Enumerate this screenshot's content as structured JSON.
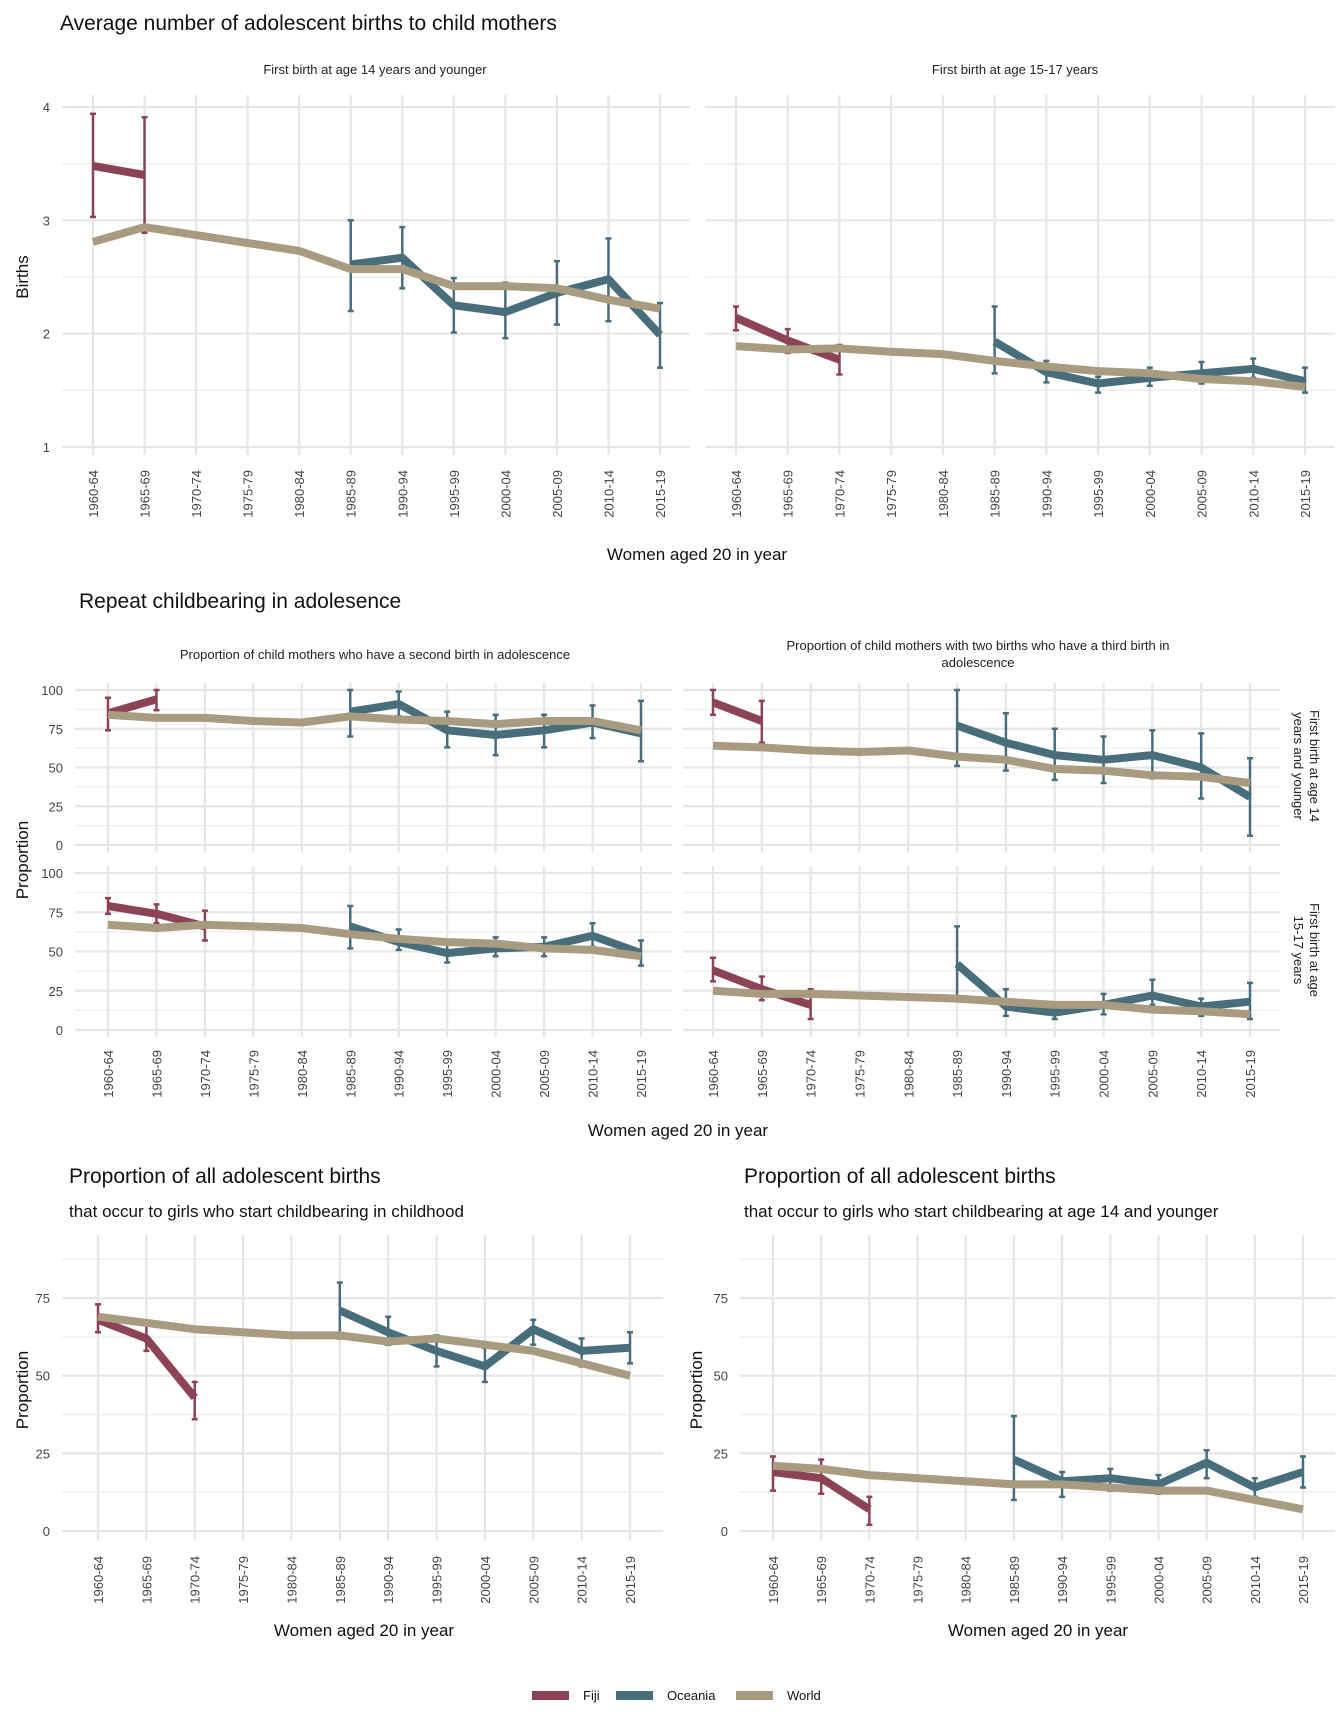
{
  "colors": {
    "Fiji": "#8b4355",
    "Oceania": "#486e7c",
    "World": "#a89b80"
  },
  "legend": [
    {
      "name": "Fiji",
      "color": "#8b4355"
    },
    {
      "name": "Oceania",
      "color": "#486e7c"
    },
    {
      "name": "World",
      "color": "#a89b80"
    }
  ],
  "categories": [
    "1960-64",
    "1965-69",
    "1970-74",
    "1975-79",
    "1980-84",
    "1985-89",
    "1990-94",
    "1995-99",
    "2000-04",
    "2005-09",
    "2010-14",
    "2015-19"
  ],
  "sections": {
    "births": {
      "title": "Average number of adolescent births to child mothers",
      "ylabel": "Births",
      "xlabel": "Women aged 20 in year"
    },
    "repeat": {
      "title": "Repeat childbearing in adolesence",
      "ylabel": "Proportion",
      "xlabel": "Women aged 20 in year",
      "col_strips": [
        "Proportion of child mothers who have a second birth in adolescence",
        "Proportion of child mothers with two births who have a third birth in",
        "adolescence"
      ],
      "row_strips": [
        "First birth at age 14",
        "years and younger",
        "First birth at age",
        "15-17 years"
      ]
    },
    "share_child": {
      "title": "Proportion of all adolescent births",
      "subtitle": "that occur to girls who start childbearing in childhood",
      "ylabel": "Proportion",
      "xlabel": "Women aged 20 in year"
    },
    "share_14": {
      "title": "Proportion of all adolescent births",
      "subtitle": "that occur to girls who start childbearing at age 14 and younger",
      "ylabel": "Proportion",
      "xlabel": "Women aged 20 in year"
    }
  },
  "chart_data": [
    {
      "id": "p1",
      "type": "line",
      "title": "First birth at age 14 years and younger",
      "xlabel": "Women aged 20 in year",
      "ylabel": "Births",
      "ylim": [
        1,
        4
      ],
      "yticks": [
        1,
        2,
        3,
        4
      ],
      "grid": true,
      "legend": "bottom",
      "series": [
        {
          "name": "Fiji",
          "values": [
            3.48,
            3.4,
            null,
            null,
            null,
            null,
            null,
            null,
            null,
            null,
            null,
            null
          ],
          "lower": [
            3.03,
            2.89,
            null,
            null,
            null,
            null,
            null,
            null,
            null,
            null,
            null,
            null
          ],
          "upper": [
            3.94,
            3.91,
            null,
            null,
            null,
            null,
            null,
            null,
            null,
            null,
            null,
            null
          ]
        },
        {
          "name": "Oceania",
          "values": [
            null,
            null,
            null,
            null,
            null,
            2.61,
            2.67,
            2.25,
            2.19,
            2.36,
            2.48,
            1.99
          ],
          "lower": [
            null,
            null,
            null,
            null,
            null,
            2.2,
            2.4,
            2.01,
            1.96,
            2.08,
            2.11,
            1.7
          ],
          "upper": [
            null,
            null,
            null,
            null,
            null,
            3.0,
            2.94,
            2.49,
            2.45,
            2.64,
            2.84,
            2.27
          ]
        },
        {
          "name": "World",
          "values": [
            2.81,
            2.94,
            2.87,
            2.8,
            2.73,
            2.57,
            2.57,
            2.42,
            2.42,
            2.4,
            2.3,
            2.22
          ]
        }
      ]
    },
    {
      "id": "p2",
      "type": "line",
      "title": "First birth at age 15-17 years",
      "xlabel": "Women aged 20 in year",
      "ylabel": "Births",
      "ylim": [
        1,
        4
      ],
      "yticks": [
        1,
        2,
        3,
        4
      ],
      "grid": true,
      "series": [
        {
          "name": "Fiji",
          "values": [
            2.14,
            1.94,
            1.77,
            null,
            null,
            null,
            null,
            null,
            null,
            null,
            null,
            null
          ],
          "lower": [
            2.03,
            1.83,
            1.64,
            null,
            null,
            null,
            null,
            null,
            null,
            null,
            null,
            null
          ],
          "upper": [
            2.24,
            2.04,
            1.9,
            null,
            null,
            null,
            null,
            null,
            null,
            null,
            null,
            null
          ]
        },
        {
          "name": "Oceania",
          "values": [
            null,
            null,
            null,
            null,
            null,
            1.93,
            1.66,
            1.56,
            1.61,
            1.65,
            1.69,
            1.58
          ],
          "lower": [
            null,
            null,
            null,
            null,
            null,
            1.65,
            1.57,
            1.48,
            1.54,
            1.56,
            1.61,
            1.48
          ],
          "upper": [
            null,
            null,
            null,
            null,
            null,
            2.24,
            1.76,
            1.62,
            1.7,
            1.75,
            1.78,
            1.7
          ]
        },
        {
          "name": "World",
          "values": [
            1.89,
            1.86,
            1.87,
            1.84,
            1.82,
            1.76,
            1.71,
            1.67,
            1.65,
            1.6,
            1.58,
            1.53
          ]
        }
      ]
    },
    {
      "id": "p3",
      "type": "line",
      "title": "Proportion of child mothers who have a second birth in adolescence",
      "row": "First birth at age 14 years and younger",
      "ylabel": "Proportion",
      "ylim": [
        0,
        100
      ],
      "yticks": [
        0,
        25,
        50,
        75,
        100
      ],
      "grid": true,
      "series": [
        {
          "name": "Fiji",
          "values": [
            85,
            94,
            null,
            null,
            null,
            null,
            null,
            null,
            null,
            null,
            null,
            null
          ],
          "lower": [
            74,
            87,
            null,
            null,
            null,
            null,
            null,
            null,
            null,
            null,
            null,
            null
          ],
          "upper": [
            95,
            100,
            null,
            null,
            null,
            null,
            null,
            null,
            null,
            null,
            null,
            null
          ]
        },
        {
          "name": "Oceania",
          "values": [
            null,
            null,
            null,
            null,
            null,
            86,
            91,
            74,
            71,
            74,
            79,
            72
          ],
          "lower": [
            null,
            null,
            null,
            null,
            null,
            70,
            83,
            63,
            58,
            63,
            69,
            54
          ],
          "upper": [
            null,
            null,
            null,
            null,
            null,
            100,
            99,
            86,
            84,
            84,
            90,
            93
          ]
        },
        {
          "name": "World",
          "values": [
            84,
            82,
            82,
            80,
            79,
            83,
            81,
            80,
            78,
            80,
            80,
            74
          ]
        }
      ]
    },
    {
      "id": "p4",
      "type": "line",
      "title": "Proportion of child mothers with two births who have a third birth in adolescence",
      "row": "First birth at age 14 years and younger",
      "ylabel": "Proportion",
      "ylim": [
        0,
        100
      ],
      "yticks": [
        0,
        25,
        50,
        75,
        100
      ],
      "grid": true,
      "series": [
        {
          "name": "Fiji",
          "values": [
            92,
            80,
            null,
            null,
            null,
            null,
            null,
            null,
            null,
            null,
            null,
            null
          ],
          "lower": [
            84,
            66,
            null,
            null,
            null,
            null,
            null,
            null,
            null,
            null,
            null,
            null
          ],
          "upper": [
            100,
            93,
            null,
            null,
            null,
            null,
            null,
            null,
            null,
            null,
            null,
            null
          ]
        },
        {
          "name": "Oceania",
          "values": [
            null,
            null,
            null,
            null,
            null,
            77,
            66,
            58,
            55,
            58,
            50,
            31
          ],
          "lower": [
            null,
            null,
            null,
            null,
            null,
            51,
            48,
            42,
            40,
            43,
            30,
            6
          ],
          "upper": [
            null,
            null,
            null,
            null,
            null,
            100,
            85,
            75,
            70,
            74,
            72,
            56
          ]
        },
        {
          "name": "World",
          "values": [
            64,
            63,
            61,
            60,
            61,
            57,
            55,
            49,
            48,
            45,
            44,
            40
          ]
        }
      ]
    },
    {
      "id": "p5",
      "type": "line",
      "title": "Proportion of child mothers who have a second birth in adolescence",
      "row": "First birth at age 15-17 years",
      "xlabel": "Women aged 20 in year",
      "ylabel": "Proportion",
      "ylim": [
        0,
        100
      ],
      "yticks": [
        0,
        25,
        50,
        75,
        100
      ],
      "grid": true,
      "series": [
        {
          "name": "Fiji",
          "values": [
            79,
            74,
            66,
            null,
            null,
            null,
            null,
            null,
            null,
            null,
            null,
            null
          ],
          "lower": [
            74,
            68,
            57,
            null,
            null,
            null,
            null,
            null,
            null,
            null,
            null,
            null
          ],
          "upper": [
            84,
            80,
            76,
            null,
            null,
            null,
            null,
            null,
            null,
            null,
            null,
            null
          ]
        },
        {
          "name": "Oceania",
          "values": [
            null,
            null,
            null,
            null,
            null,
            66,
            56,
            49,
            52,
            53,
            60,
            49
          ],
          "lower": [
            null,
            null,
            null,
            null,
            null,
            52,
            51,
            43,
            47,
            47,
            53,
            41
          ],
          "upper": [
            null,
            null,
            null,
            null,
            null,
            79,
            64,
            56,
            59,
            59,
            68,
            57
          ]
        },
        {
          "name": "World",
          "values": [
            67,
            65,
            67,
            66,
            65,
            61,
            58,
            56,
            55,
            52,
            51,
            47
          ]
        }
      ]
    },
    {
      "id": "p6",
      "type": "line",
      "title": "Proportion of child mothers with two births who have a third birth in adolescence",
      "row": "First birth at age 15-17 years",
      "xlabel": "Women aged 20 in year",
      "ylabel": "Proportion",
      "ylim": [
        0,
        100
      ],
      "yticks": [
        0,
        25,
        50,
        75,
        100
      ],
      "grid": true,
      "series": [
        {
          "name": "Fiji",
          "values": [
            38,
            26,
            16,
            null,
            null,
            null,
            null,
            null,
            null,
            null,
            null,
            null
          ],
          "lower": [
            31,
            19,
            7,
            null,
            null,
            null,
            null,
            null,
            null,
            null,
            null,
            null
          ],
          "upper": [
            46,
            34,
            26,
            null,
            null,
            null,
            null,
            null,
            null,
            null,
            null,
            null
          ]
        },
        {
          "name": "Oceania",
          "values": [
            null,
            null,
            null,
            null,
            null,
            42,
            15,
            11,
            16,
            22,
            15,
            18
          ],
          "lower": [
            null,
            null,
            null,
            null,
            null,
            19,
            9,
            7,
            10,
            16,
            9,
            7
          ],
          "upper": [
            null,
            null,
            null,
            null,
            null,
            66,
            26,
            17,
            23,
            32,
            20,
            30
          ]
        },
        {
          "name": "World",
          "values": [
            25,
            23,
            23,
            22,
            21,
            20,
            18,
            16,
            16,
            13,
            12,
            10
          ]
        }
      ]
    },
    {
      "id": "p7",
      "type": "line",
      "title": "Proportion of all adolescent births",
      "subtitle": "that occur to girls who start childbearing in childhood",
      "xlabel": "Women aged 20 in year",
      "ylabel": "Proportion",
      "ylim": [
        0,
        95
      ],
      "yticks": [
        0,
        25,
        50,
        75
      ],
      "grid": true,
      "series": [
        {
          "name": "Fiji",
          "values": [
            68,
            62,
            43,
            null,
            null,
            null,
            null,
            null,
            null,
            null,
            null,
            null
          ],
          "lower": [
            64,
            58,
            36,
            null,
            null,
            null,
            null,
            null,
            null,
            null,
            null,
            null
          ],
          "upper": [
            73,
            67,
            48,
            null,
            null,
            null,
            null,
            null,
            null,
            null,
            null,
            null
          ]
        },
        {
          "name": "Oceania",
          "values": [
            null,
            null,
            null,
            null,
            null,
            71,
            64,
            58,
            53,
            65,
            58,
            59
          ],
          "lower": [
            null,
            null,
            null,
            null,
            null,
            62,
            60,
            53,
            48,
            60,
            53,
            54
          ],
          "upper": [
            null,
            null,
            null,
            null,
            null,
            80,
            69,
            63,
            59,
            68,
            62,
            64
          ]
        },
        {
          "name": "World",
          "values": [
            69,
            67,
            65,
            64,
            63,
            63,
            61,
            62,
            60,
            58,
            54,
            50
          ]
        }
      ]
    },
    {
      "id": "p8",
      "type": "line",
      "title": "Proportion of all adolescent births",
      "subtitle": "that occur to girls who start childbearing at age 14 and younger",
      "xlabel": "Women aged 20 in year",
      "ylabel": "Proportion",
      "ylim": [
        0,
        95
      ],
      "yticks": [
        0,
        25,
        50,
        75
      ],
      "grid": true,
      "series": [
        {
          "name": "Fiji",
          "values": [
            19,
            17,
            7,
            null,
            null,
            null,
            null,
            null,
            null,
            null,
            null,
            null
          ],
          "lower": [
            13,
            12,
            2,
            null,
            null,
            null,
            null,
            null,
            null,
            null,
            null,
            null
          ],
          "upper": [
            24,
            23,
            11,
            null,
            null,
            null,
            null,
            null,
            null,
            null,
            null,
            null
          ]
        },
        {
          "name": "Oceania",
          "values": [
            null,
            null,
            null,
            null,
            null,
            23,
            16,
            17,
            15,
            22,
            14,
            19
          ],
          "lower": [
            null,
            null,
            null,
            null,
            null,
            10,
            11,
            13,
            12,
            17,
            11,
            14
          ],
          "upper": [
            null,
            null,
            null,
            null,
            null,
            37,
            19,
            20,
            18,
            26,
            17,
            24
          ]
        },
        {
          "name": "World",
          "values": [
            21,
            20,
            18,
            17,
            16,
            15,
            15,
            14,
            13,
            13,
            10,
            7
          ]
        }
      ]
    }
  ]
}
